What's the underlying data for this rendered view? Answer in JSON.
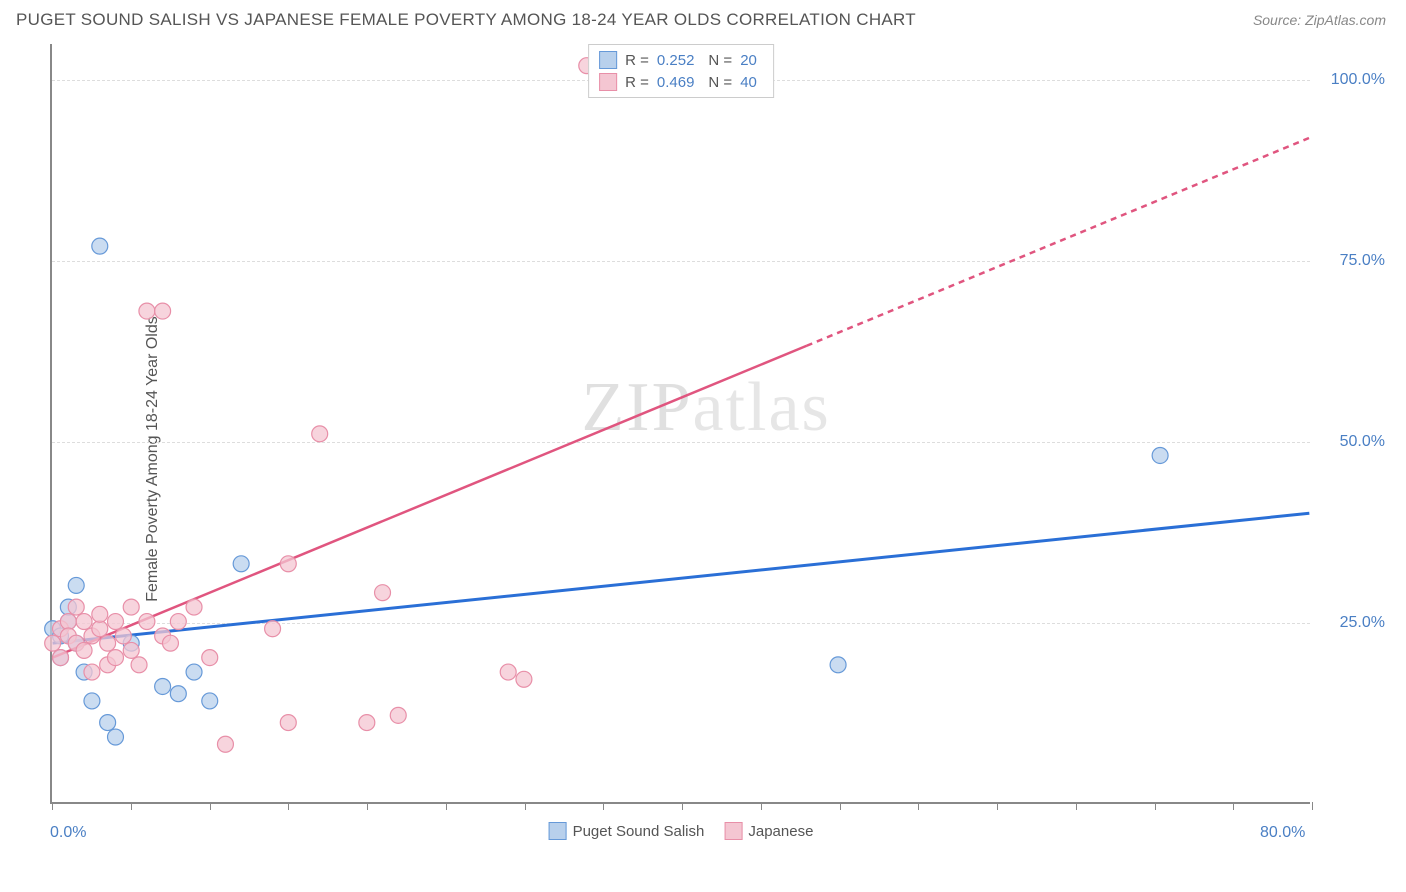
{
  "title": "PUGET SOUND SALISH VS JAPANESE FEMALE POVERTY AMONG 18-24 YEAR OLDS CORRELATION CHART",
  "source": "Source: ZipAtlas.com",
  "watermark": "ZIPatlas",
  "chart": {
    "type": "scatter",
    "ylabel": "Female Poverty Among 18-24 Year Olds",
    "xlim": [
      0,
      80
    ],
    "ylim": [
      0,
      105
    ],
    "xtick_labels": {
      "left": "0.0%",
      "right": "80.0%"
    },
    "ytick_values": [
      25,
      50,
      75,
      100
    ],
    "ytick_labels": [
      "25.0%",
      "50.0%",
      "75.0%",
      "100.0%"
    ],
    "xtick_minor": [
      0,
      5,
      10,
      15,
      20,
      25,
      30,
      35,
      40,
      45,
      50,
      55,
      60,
      65,
      70,
      75,
      80
    ],
    "grid_color": "#dddddd",
    "axis_color": "#888888",
    "background": "#ffffff",
    "series": [
      {
        "name": "Puget Sound Salish",
        "color_fill": "#b8d0ec",
        "color_stroke": "#6699d8",
        "marker_radius": 8,
        "marker_opacity": 0.75,
        "R": "0.252",
        "N": "20",
        "regression": {
          "x1": 0,
          "y1": 22,
          "x2": 80,
          "y2": 40,
          "color": "#2a6fd6",
          "width": 3,
          "dash_after_x": null
        },
        "points": [
          [
            0,
            24
          ],
          [
            0.5,
            23
          ],
          [
            0.5,
            20
          ],
          [
            1,
            25
          ],
          [
            1,
            27
          ],
          [
            1.5,
            22
          ],
          [
            1.5,
            30
          ],
          [
            2,
            18
          ],
          [
            2.5,
            14
          ],
          [
            3,
            77
          ],
          [
            3.5,
            11
          ],
          [
            4,
            9
          ],
          [
            5,
            22
          ],
          [
            7,
            16
          ],
          [
            8,
            15
          ],
          [
            9,
            18
          ],
          [
            10,
            14
          ],
          [
            12,
            33
          ],
          [
            50,
            19
          ],
          [
            70.5,
            48
          ]
        ]
      },
      {
        "name": "Japanese",
        "color_fill": "#f4c6d2",
        "color_stroke": "#e88fa8",
        "marker_radius": 8,
        "marker_opacity": 0.75,
        "R": "0.469",
        "N": "40",
        "regression": {
          "x1": 0,
          "y1": 20,
          "x2": 80,
          "y2": 92,
          "color": "#e0557f",
          "width": 2.5,
          "dash_after_x": 48
        },
        "points": [
          [
            0,
            22
          ],
          [
            0.5,
            24
          ],
          [
            0.5,
            20
          ],
          [
            1,
            25
          ],
          [
            1,
            23
          ],
          [
            1.5,
            27
          ],
          [
            1.5,
            22
          ],
          [
            2,
            25
          ],
          [
            2,
            21
          ],
          [
            2.5,
            18
          ],
          [
            2.5,
            23
          ],
          [
            3,
            24
          ],
          [
            3,
            26
          ],
          [
            3.5,
            22
          ],
          [
            3.5,
            19
          ],
          [
            4,
            25
          ],
          [
            4,
            20
          ],
          [
            4.5,
            23
          ],
          [
            5,
            21
          ],
          [
            5,
            27
          ],
          [
            5.5,
            19
          ],
          [
            6,
            68
          ],
          [
            6,
            25
          ],
          [
            7,
            68
          ],
          [
            7,
            23
          ],
          [
            7.5,
            22
          ],
          [
            8,
            25
          ],
          [
            9,
            27
          ],
          [
            10,
            20
          ],
          [
            11,
            8
          ],
          [
            14,
            24
          ],
          [
            15,
            33
          ],
          [
            15,
            11
          ],
          [
            17,
            51
          ],
          [
            20,
            11
          ],
          [
            21,
            29
          ],
          [
            22,
            12
          ],
          [
            29,
            18
          ],
          [
            34,
            102
          ],
          [
            30,
            17
          ]
        ]
      }
    ]
  }
}
